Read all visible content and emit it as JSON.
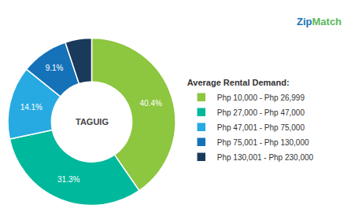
{
  "chart_data": {
    "type": "pie",
    "title": "TAGUIG",
    "legend_title": "Average Rental Demand:",
    "categories": [
      "Php 10,000 - Php 26,999",
      "Php 27,000 - Php 47,000",
      "Php 47,001 - Php 75,000",
      "Php 75,001 - Php 130,000",
      "Php 130,001 - Php 230,000"
    ],
    "values": [
      40.4,
      31.3,
      14.1,
      9.1,
      5.1
    ],
    "value_labels": [
      "40.4%",
      "31.3%",
      "14.1%",
      "9.1%",
      null
    ],
    "colors": [
      "#8dc63f",
      "#00b89c",
      "#27aae1",
      "#1572b9",
      "#1a3a5c"
    ],
    "data_labels": true,
    "legend": "right",
    "annotations": [
      {
        "text": "Zip",
        "color": "#1572b9"
      },
      {
        "text": "Match",
        "color": "#5cb85c"
      }
    ]
  }
}
